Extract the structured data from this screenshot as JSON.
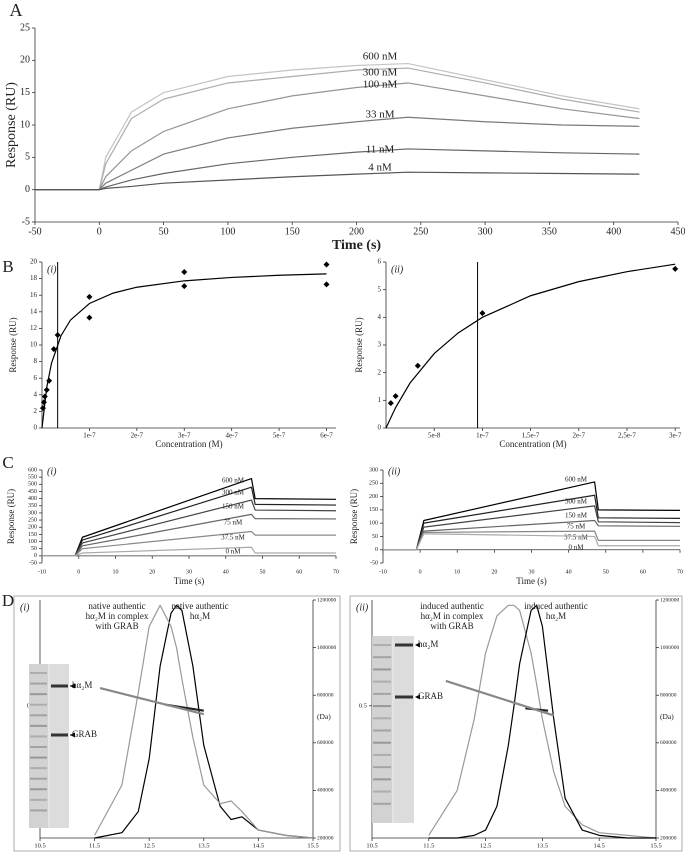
{
  "chart_data": [
    {
      "type": "line",
      "label": "A",
      "xlabel": "Time (s)",
      "ylabel": "Response (RU)",
      "x": [
        -50,
        -25,
        0,
        5,
        25,
        50,
        100,
        150,
        200,
        240,
        300,
        360,
        420
      ],
      "xlim": [
        -50,
        450
      ],
      "xticks": [
        -50,
        0,
        50,
        100,
        150,
        200,
        250,
        300,
        350,
        400,
        450
      ],
      "ylim": [
        -5,
        25
      ],
      "yticks": [
        -5,
        0,
        5,
        10,
        15,
        20,
        25
      ],
      "series": [
        {
          "name": "600 nM",
          "color": "#c4c4c4",
          "values": [
            0,
            0,
            0,
            5,
            12,
            15,
            17.5,
            18.5,
            19.2,
            19.5,
            17,
            14.5,
            12.5
          ]
        },
        {
          "name": "300 nM",
          "color": "#adadad",
          "values": [
            0,
            0,
            0,
            4,
            11,
            14,
            16.5,
            17.5,
            18.5,
            18.8,
            16.5,
            14,
            12
          ]
        },
        {
          "name": "100 nM",
          "color": "#959595",
          "values": [
            0,
            0,
            0,
            2,
            6,
            9,
            12.5,
            14.5,
            15.8,
            16.5,
            14.5,
            12.5,
            11
          ]
        },
        {
          "name": "33 nM",
          "color": "#7a7a7a",
          "values": [
            0,
            0,
            0,
            1,
            3,
            5.5,
            8,
            9.5,
            10.5,
            11.2,
            10.5,
            10,
            9.8
          ]
        },
        {
          "name": "11 nM",
          "color": "#666666",
          "values": [
            0,
            0,
            0,
            0.4,
            1.5,
            2.5,
            4,
            5,
            5.8,
            6.3,
            6,
            5.7,
            5.5
          ]
        },
        {
          "name": "4 nM",
          "color": "#555555",
          "values": [
            0,
            0,
            0,
            0.2,
            0.5,
            1,
            1.5,
            2,
            2.4,
            2.7,
            2.6,
            2.5,
            2.4
          ]
        }
      ]
    },
    {
      "type": "scatter",
      "label": "B",
      "sublabel": "(i)",
      "xlabel": "Concentration (M)",
      "ylabel": "Response (RU)",
      "color": "#000000",
      "x": [
        2e-09,
        4e-09,
        6e-09,
        1e-08,
        1.5e-08,
        2.5e-08,
        3.3e-08,
        1e-07,
        1e-07,
        3e-07,
        3e-07,
        6e-07,
        6e-07
      ],
      "values": [
        2.4,
        3.1,
        3.8,
        4.6,
        5.7,
        9.5,
        11.2,
        15.8,
        13.3,
        18.8,
        17.1,
        19.7,
        17.3
      ],
      "fit_x": [
        0,
        1e-08,
        2e-08,
        4e-08,
        6e-08,
        1e-07,
        1.5e-07,
        2e-07,
        3e-07,
        4e-07,
        5e-07,
        6e-07
      ],
      "fit_values": [
        0,
        4.9,
        7.8,
        11.1,
        13,
        15,
        16.25,
        16.96,
        17.73,
        18.14,
        18.4,
        18.57
      ],
      "vline": 3.3e-08,
      "xlim": [
        0,
        6.2e-07
      ],
      "xticks": [
        {
          "value": 1e-07,
          "label": "1e-7"
        },
        {
          "value": 2e-07,
          "label": "2e-7"
        },
        {
          "value": 3e-07,
          "label": "3e-7"
        },
        {
          "value": 4e-07,
          "label": "4e-7"
        },
        {
          "value": 5e-07,
          "label": "5e-7"
        },
        {
          "value": 6e-07,
          "label": "6e-7"
        }
      ],
      "ylim": [
        0,
        20
      ],
      "yticks": [
        0,
        2,
        4,
        6,
        8,
        10,
        12,
        14,
        16,
        18,
        20
      ]
    },
    {
      "type": "scatter",
      "sublabel": "(ii)",
      "xlabel": "Concentration (M)",
      "ylabel": "Response (RU)",
      "color": "#000000",
      "x": [
        5e-09,
        1e-08,
        3.3e-08,
        1e-07,
        3e-07
      ],
      "values": [
        0.9,
        1.15,
        2.25,
        4.15,
        5.75
      ],
      "fit_x": [
        0,
        1e-08,
        2.5e-08,
        5e-08,
        7.5e-08,
        1e-07,
        1.5e-07,
        2e-07,
        2.5e-07,
        3e-07
      ],
      "fit_values": [
        0,
        0.74,
        1.63,
        2.69,
        3.44,
        4.0,
        4.78,
        5.29,
        5.65,
        5.92
      ],
      "vline": 9.5e-08,
      "xlim": [
        0,
        3.05e-07
      ],
      "xticks": [
        {
          "value": 5e-08,
          "label": "5e-8"
        },
        {
          "value": 1e-07,
          "label": "1e-7"
        },
        {
          "value": 1.5e-07,
          "label": "1,5e-7"
        },
        {
          "value": 2e-07,
          "label": "2e-7"
        },
        {
          "value": 2.5e-07,
          "label": "2,5e-7"
        },
        {
          "value": 3e-07,
          "label": "3e-7"
        }
      ],
      "ylim": [
        0,
        6
      ],
      "yticks": [
        0,
        1,
        2,
        3,
        4,
        5,
        6
      ]
    },
    {
      "type": "line",
      "label": "C",
      "sublabel": "(i)",
      "xlabel": "Time (s)",
      "ylabel": "Response (RU)",
      "x": [
        -10,
        -1,
        1,
        47,
        48,
        70
      ],
      "xlim": [
        -10,
        70
      ],
      "xticks": [
        -10,
        0,
        10,
        20,
        30,
        40,
        50,
        60,
        70
      ],
      "ylim": [
        -50,
        600
      ],
      "yticks": [
        -50,
        0,
        50,
        100,
        150,
        200,
        250,
        300,
        350,
        400,
        450,
        500,
        550,
        600
      ],
      "series": [
        {
          "name": "600 nM",
          "color": "#000000",
          "values": [
            0,
            0,
            130,
            540,
            400,
            395
          ]
        },
        {
          "name": "300 nM",
          "color": "#222222",
          "values": [
            0,
            0,
            110,
            480,
            360,
            355
          ]
        },
        {
          "name": "150 nM",
          "color": "#444444",
          "values": [
            0,
            0,
            90,
            390,
            320,
            315
          ]
        },
        {
          "name": "75 nM",
          "color": "#666666",
          "values": [
            0,
            0,
            70,
            290,
            260,
            258
          ]
        },
        {
          "name": "37.5 nM",
          "color": "#888888",
          "values": [
            0,
            0,
            50,
            170,
            145,
            145
          ]
        },
        {
          "name": "0 nM",
          "color": "#aaaaaa",
          "values": [
            0,
            0,
            20,
            60,
            20,
            20
          ]
        }
      ]
    },
    {
      "type": "line",
      "sublabel": "(ii)",
      "xlabel": "Time (s)",
      "ylabel": "Response (RU)",
      "x": [
        -10,
        -1,
        1,
        47,
        48,
        70
      ],
      "xlim": [
        -10,
        70
      ],
      "xticks": [
        -10,
        0,
        10,
        20,
        30,
        40,
        50,
        60,
        70
      ],
      "ylim": [
        -50,
        300
      ],
      "yticks": [
        -50,
        0,
        50,
        100,
        150,
        200,
        250,
        300
      ],
      "series": [
        {
          "name": "600 nM",
          "color": "#000000",
          "values": [
            0,
            0,
            110,
            255,
            150,
            148
          ]
        },
        {
          "name": "300 nM",
          "color": "#222222",
          "values": [
            0,
            0,
            100,
            205,
            120,
            118
          ]
        },
        {
          "name": "150 nM",
          "color": "#444444",
          "values": [
            0,
            0,
            85,
            165,
            105,
            102
          ]
        },
        {
          "name": "75 nM",
          "color": "#666666",
          "values": [
            0,
            0,
            70,
            110,
            90,
            88
          ]
        },
        {
          "name": "37.5 nM",
          "color": "#888888",
          "values": [
            0,
            0,
            65,
            70,
            35,
            35
          ]
        },
        {
          "name": "0 nM",
          "color": "#aaaaaa",
          "values": [
            0,
            0,
            60,
            50,
            15,
            15
          ]
        }
      ]
    },
    {
      "type": "line",
      "label": "D",
      "sublabel": "(i)",
      "x": [
        11.5,
        12,
        12.3,
        12.5,
        12.7,
        12.9,
        13.0,
        13.1,
        13.3,
        13.5,
        13.8,
        14,
        14.2,
        14.5,
        15,
        15.5
      ],
      "xlim": [
        10.5,
        15.5
      ],
      "xticks": [
        10.5,
        11.5,
        12.5,
        13.5,
        14.5,
        15.5
      ],
      "ylim": [
        0,
        0.9
      ],
      "yticks": [
        0.5
      ],
      "y2lim": [
        200000,
        1200000
      ],
      "y2ticks": [
        200000,
        400000,
        600000,
        800000,
        1000000,
        1200000
      ],
      "y2label": "(Da)",
      "series": [
        {
          "color": "#000000",
          "values": [
            0,
            0.02,
            0.1,
            0.3,
            0.65,
            0.85,
            0.88,
            0.86,
            0.65,
            0.35,
            0.12,
            0.07,
            0.08,
            0.03,
            0.01,
            0
          ]
        },
        {
          "color": "#999999",
          "values": [
            0.01,
            0.2,
            0.55,
            0.8,
            0.88,
            0.8,
            0.72,
            0.6,
            0.38,
            0.2,
            0.13,
            0.14,
            0.1,
            0.03,
            0.01,
            0
          ]
        },
        {
          "color": "#222222",
          "axis": "y2",
          "x": [
            12.8,
            13.5
          ],
          "values": [
            760000,
            735000
          ]
        },
        {
          "color": "#888888",
          "axis": "y2",
          "x": [
            11.6,
            13.5
          ],
          "values": [
            830000,
            720000
          ]
        }
      ],
      "annotations": [
        [
          "native authentic",
          "hα₂M in complex",
          "with GRAB"
        ],
        [
          "native authentic",
          "hα₂M"
        ]
      ],
      "gel_labels": [
        "hα₂M",
        "GRAB"
      ]
    },
    {
      "type": "line",
      "sublabel": "(ii)",
      "x": [
        11.5,
        12,
        12.3,
        12.5,
        12.7,
        12.9,
        13.0,
        13.1,
        13.3,
        13.4,
        13.5,
        13.7,
        13.9,
        14.2,
        14.5,
        15,
        15.5
      ],
      "xlim": [
        10.5,
        15.5
      ],
      "xticks": [
        10.5,
        11.5,
        12.5,
        13.5,
        14.5,
        15.5
      ],
      "ylim": [
        0,
        0.9
      ],
      "yticks": [
        0.5
      ],
      "y2lim": [
        200000,
        1200000
      ],
      "y2ticks": [
        200000,
        400000,
        600000,
        800000,
        1000000,
        1200000
      ],
      "y2label": "(Da)",
      "series": [
        {
          "color": "#999999",
          "values": [
            0.01,
            0.18,
            0.45,
            0.7,
            0.84,
            0.88,
            0.88,
            0.86,
            0.7,
            0.58,
            0.45,
            0.25,
            0.12,
            0.05,
            0.02,
            0.01,
            0
          ]
        },
        {
          "color": "#000000",
          "values": [
            0,
            0,
            0.01,
            0.03,
            0.12,
            0.35,
            0.5,
            0.66,
            0.86,
            0.88,
            0.8,
            0.45,
            0.15,
            0.03,
            0.01,
            0,
            0
          ]
        },
        {
          "color": "#222222",
          "axis": "y2",
          "x": [
            13.2,
            13.6
          ],
          "values": [
            745000,
            735000
          ]
        },
        {
          "color": "#888888",
          "axis": "y2",
          "x": [
            11.8,
            13.7
          ],
          "values": [
            860000,
            715000
          ]
        }
      ],
      "annotations": [
        [
          "induced  authentic",
          "hα₂M in complex",
          "with GRAB"
        ],
        [
          "induced authentic",
          "hα₂M"
        ]
      ],
      "gel_labels": [
        "hα₂M",
        "GRAB"
      ]
    }
  ]
}
